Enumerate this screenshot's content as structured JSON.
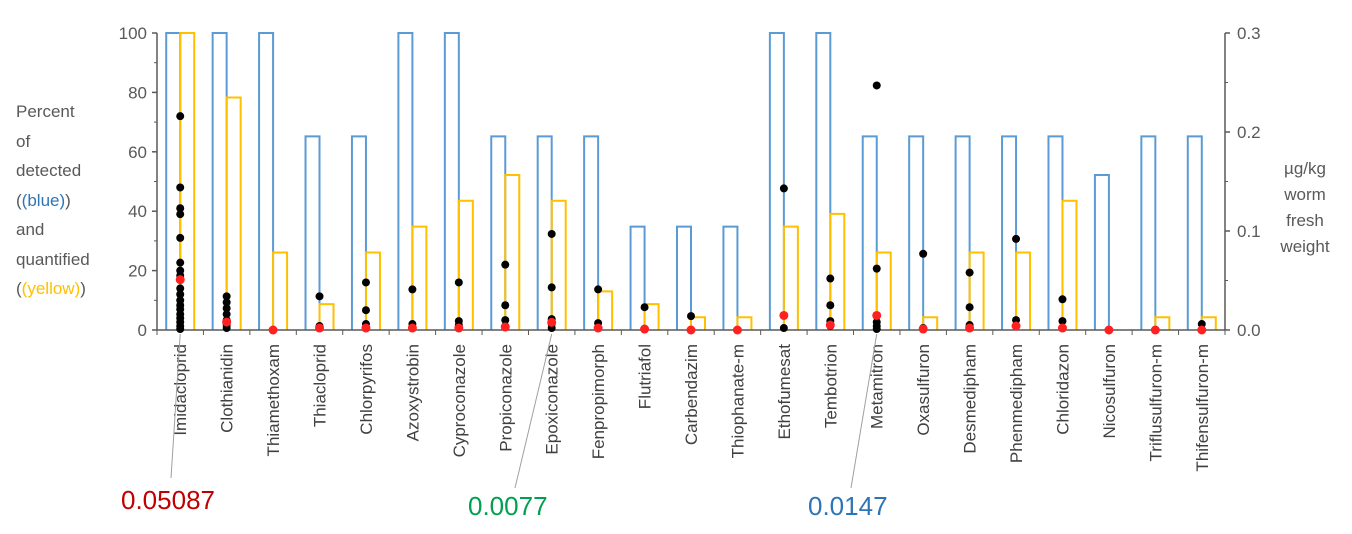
{
  "chart_data": {
    "type": "bar",
    "categories": [
      "Imidacloprid",
      "Clothianidin",
      "Thiamethoxam",
      "Thiacloprid",
      "Chlorpyrifos",
      "Azoxystrobin",
      "Cyproconazole",
      "Propiconazole",
      "Epoxiconazole",
      "Fenpropimorph",
      "Flutriafol",
      "Carbendazim",
      "Thiophanate-m",
      "Ethofumesat",
      "Tembotrion",
      "Metamitron",
      "Oxasulfuron",
      "Desmedipham",
      "Phenmedipham",
      "Chloridazon",
      "Nicosulfuron",
      "Triflusulfuron-m",
      "Thifensulfuron-m"
    ],
    "series": [
      {
        "name": "detected",
        "color": "#5B9BD5",
        "axis": "left",
        "values": [
          100,
          100,
          100,
          65.2,
          65.2,
          100,
          100,
          65.2,
          65.2,
          65.2,
          34.8,
          34.8,
          34.8,
          100,
          100,
          65.2,
          65.2,
          65.2,
          65.2,
          65.2,
          52.2,
          65.2,
          65.2
        ]
      },
      {
        "name": "quantified",
        "color": "#FFC000",
        "axis": "left",
        "values": [
          100,
          78.3,
          26.1,
          8.7,
          26.1,
          34.8,
          43.5,
          52.2,
          43.5,
          13,
          8.7,
          4.3,
          4.3,
          34.8,
          39.1,
          26.1,
          4.3,
          26.1,
          26.1,
          43.5,
          0,
          4.3,
          4.3
        ]
      }
    ],
    "points_black": [
      [
        0.216,
        0.144,
        0.123,
        0.117,
        0.093,
        0.068,
        0.06,
        0.055,
        0.042,
        0.036,
        0.03,
        0.025,
        0.021,
        0.016,
        0.012,
        0.008,
        0.004,
        0.001
      ],
      [
        0.034,
        0.028,
        0.022,
        0.016,
        0.01,
        0.005,
        0.002
      ],
      [],
      [
        0.034,
        0.004
      ],
      [
        0.048,
        0.02,
        0.006,
        0.002
      ],
      [
        0.041,
        0.006,
        0.002
      ],
      [
        0.048,
        0.009,
        0.005,
        0.002
      ],
      [
        0.066,
        0.025,
        0.01,
        0.004
      ],
      [
        0.097,
        0.043,
        0.011,
        0.006,
        0.002
      ],
      [
        0.041,
        0.007,
        0.002
      ],
      [
        0.023
      ],
      [
        0.014
      ],
      [],
      [
        0.143,
        0.002
      ],
      [
        0.052,
        0.025,
        0.009,
        0.004
      ],
      [
        0.247,
        0.062,
        0.008,
        0.004,
        0.001
      ],
      [
        0.077,
        0.002
      ],
      [
        0.058,
        0.023,
        0.005
      ],
      [
        0.092,
        0.01,
        0.004
      ],
      [
        0.031,
        0.009,
        0.002
      ],
      [],
      [],
      [
        0.006
      ]
    ],
    "points_red": [
      0.05087,
      0.008,
      0.0,
      0.002,
      0.002,
      0.002,
      0.002,
      0.003,
      0.0077,
      0.002,
      0.001,
      0.0,
      0.0,
      0.0147,
      0.005,
      0.0147,
      0.001,
      0.002,
      0.004,
      0.002,
      0.0,
      0.0,
      0.0
    ],
    "y_left": {
      "min": 0,
      "max": 100,
      "ticks": [
        "0",
        "20",
        "40",
        "60",
        "80",
        "100"
      ]
    },
    "y_right": {
      "min": 0,
      "max": 0.3,
      "ticks": [
        "0.0",
        "0.1",
        "0.2",
        "0.3"
      ]
    },
    "ylabel_left": [
      "Percent",
      "of",
      "detected",
      "(blue)",
      "and",
      "quantified",
      "(yellow)"
    ],
    "ylabel_right": [
      "µg/kg",
      "worm",
      "fresh",
      "weight"
    ],
    "annotations": [
      {
        "text": "0.05087",
        "color": "#C00000",
        "category": "Imidacloprid"
      },
      {
        "text": "0.0077",
        "color": "#00A050",
        "category": "Epoxiconazole"
      },
      {
        "text": "0.0147",
        "color": "#2E75B6",
        "category": "Metamitron"
      }
    ],
    "grid": false,
    "legend": "none"
  }
}
